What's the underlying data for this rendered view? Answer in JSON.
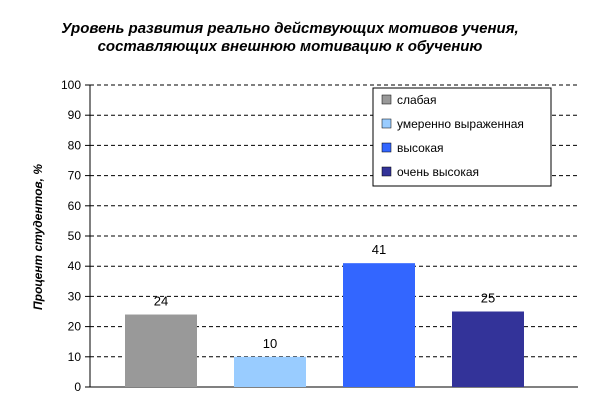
{
  "chart_data": {
    "type": "bar",
    "title_lines": [
      "Уровень развития реально действующих мотивов учения,",
      "составляющих внешнюю мотивацию к обучению"
    ],
    "ylabel": "Процент студентов, %",
    "xlabel": "",
    "ylim": [
      0,
      100
    ],
    "yticks": [
      "0",
      "10",
      "20",
      "30",
      "40",
      "50",
      "60",
      "70",
      "80",
      "90",
      "100"
    ],
    "grid": true,
    "legend_position": "top-right",
    "categories": [
      "слабая",
      "умеренно выраженная",
      "высокая",
      "очень высокая"
    ],
    "values": [
      24,
      10,
      41,
      25
    ],
    "colors": [
      "#999999",
      "#99ccff",
      "#3366ff",
      "#333399"
    ]
  }
}
